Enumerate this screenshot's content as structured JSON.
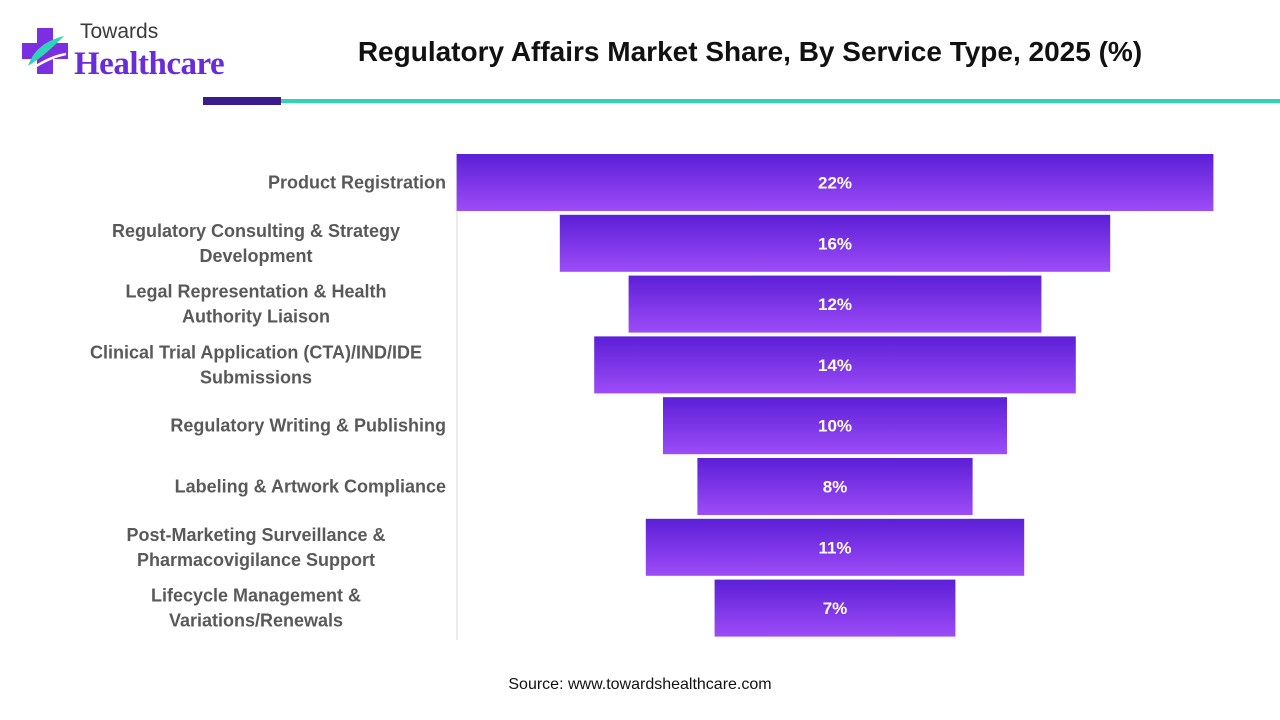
{
  "header": {
    "logo_line1": "Towards",
    "logo_line2": "Healthcare",
    "title": "Regulatory Affairs Market Share, By Service Type, 2025 (%)"
  },
  "colors": {
    "bar_top": "#5b1fd6",
    "bar_bottom": "#9d4cf7",
    "accent_dark": "#3b1a8c",
    "accent_teal": "#2fd3b5",
    "label_gray": "#595959"
  },
  "chart_data": {
    "type": "bar",
    "orientation": "horizontal",
    "style": "funnel-centered",
    "title": "Regulatory Affairs Market Share, By Service Type, 2025 (%)",
    "categories": [
      [
        "Product Registration"
      ],
      [
        "Regulatory Consulting & Strategy",
        "Development"
      ],
      [
        "Legal Representation & Health",
        "Authority Liaison"
      ],
      [
        "Clinical Trial Application (CTA)/IND/IDE",
        "Submissions"
      ],
      [
        "Regulatory Writing & Publishing"
      ],
      [
        "Labeling & Artwork Compliance"
      ],
      [
        "Post-Marketing Surveillance &",
        "Pharmacovigilance Support"
      ],
      [
        "Lifecycle Management &",
        "Variations/Renewals"
      ]
    ],
    "values": [
      22,
      16,
      12,
      14,
      10,
      8,
      11,
      7
    ],
    "value_labels": [
      "22%",
      "16%",
      "12%",
      "14%",
      "10%",
      "8%",
      "11%",
      "7%"
    ],
    "unit": "%",
    "grid": false,
    "legend": "none"
  },
  "footer": {
    "source": "Source: www.towardshealthcare.com"
  }
}
